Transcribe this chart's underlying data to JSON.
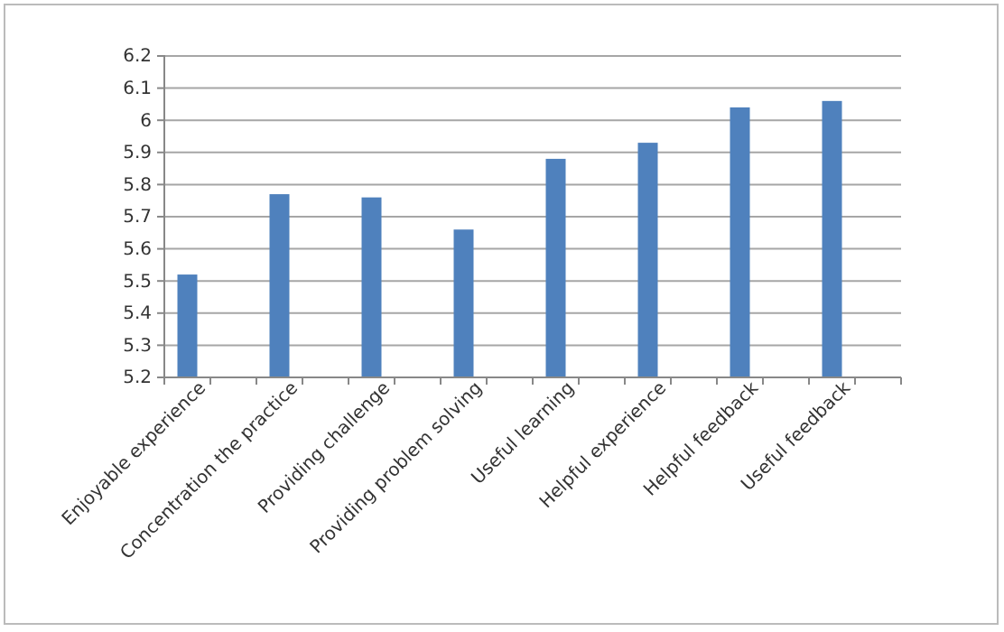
{
  "chart_data": {
    "type": "bar",
    "categories": [
      "Enjoyable experience",
      null,
      "Concentration the practice",
      null,
      "Providing challenge",
      null,
      "Providing problem solving",
      null,
      "Useful learning",
      null,
      "Helpful experience",
      null,
      "Helpful feedback",
      null,
      "Useful feedback",
      null
    ],
    "values": [
      5.52,
      null,
      5.77,
      null,
      5.76,
      null,
      5.66,
      null,
      5.88,
      null,
      5.93,
      null,
      6.04,
      null,
      6.06,
      null
    ],
    "color": "#4f81bd",
    "ylim": [
      5.2,
      6.2
    ],
    "yticks": [
      5.2,
      5.3,
      5.4,
      5.5,
      5.6,
      5.7,
      5.8,
      5.9,
      6,
      6.1,
      6.2
    ],
    "grid": "y"
  }
}
